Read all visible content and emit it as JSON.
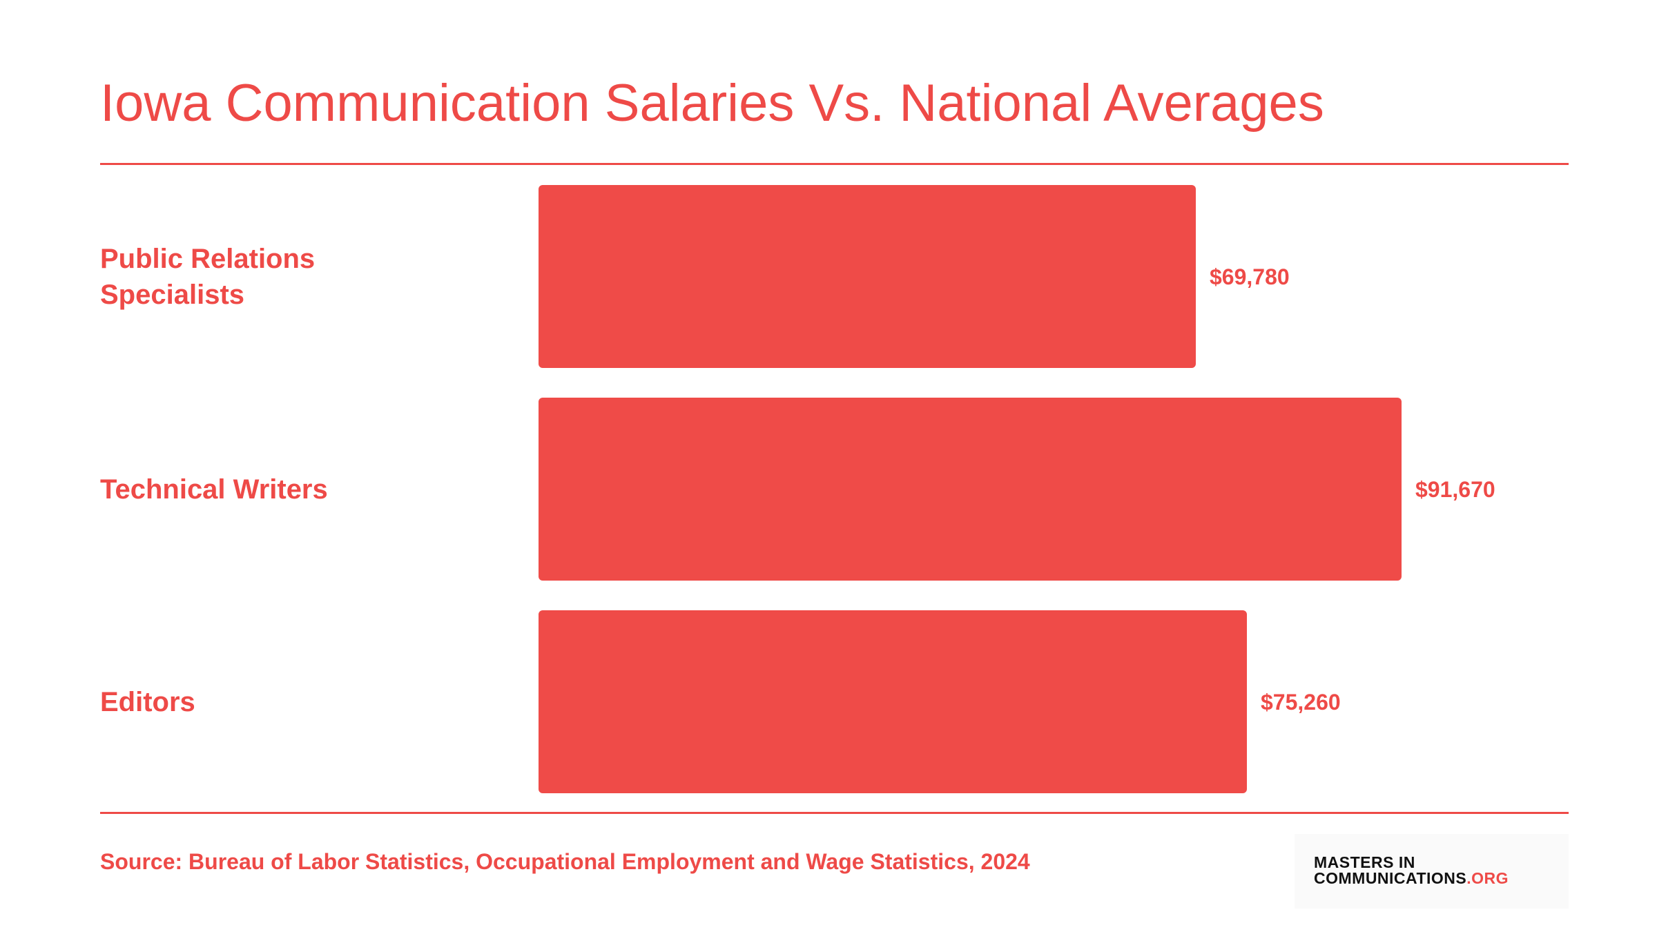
{
  "chart_data": {
    "type": "bar",
    "orientation": "horizontal",
    "title": "Iowa Communication Salaries Vs. National Averages",
    "categories": [
      "Public Relations\nSpecialists",
      "Technical Writers",
      "Editors"
    ],
    "values": [
      69780,
      91670,
      75260
    ],
    "value_labels": [
      "$69,780",
      "$91,670",
      "$75,260"
    ],
    "xlim": [
      0,
      91670
    ],
    "grid": false,
    "legend": "none",
    "bar_color": "#ef4b48"
  },
  "footer": {
    "source": "Source: Bureau of Labor Statistics, Occupational Employment and Wage Statistics, 2024"
  },
  "logo": {
    "line1": "MASTERS IN",
    "line2_main": "COMMUNICATIONS",
    "line2_suffix": ".ORG"
  },
  "colors": {
    "accent": "#ee4a47",
    "background": "#ffffff"
  }
}
